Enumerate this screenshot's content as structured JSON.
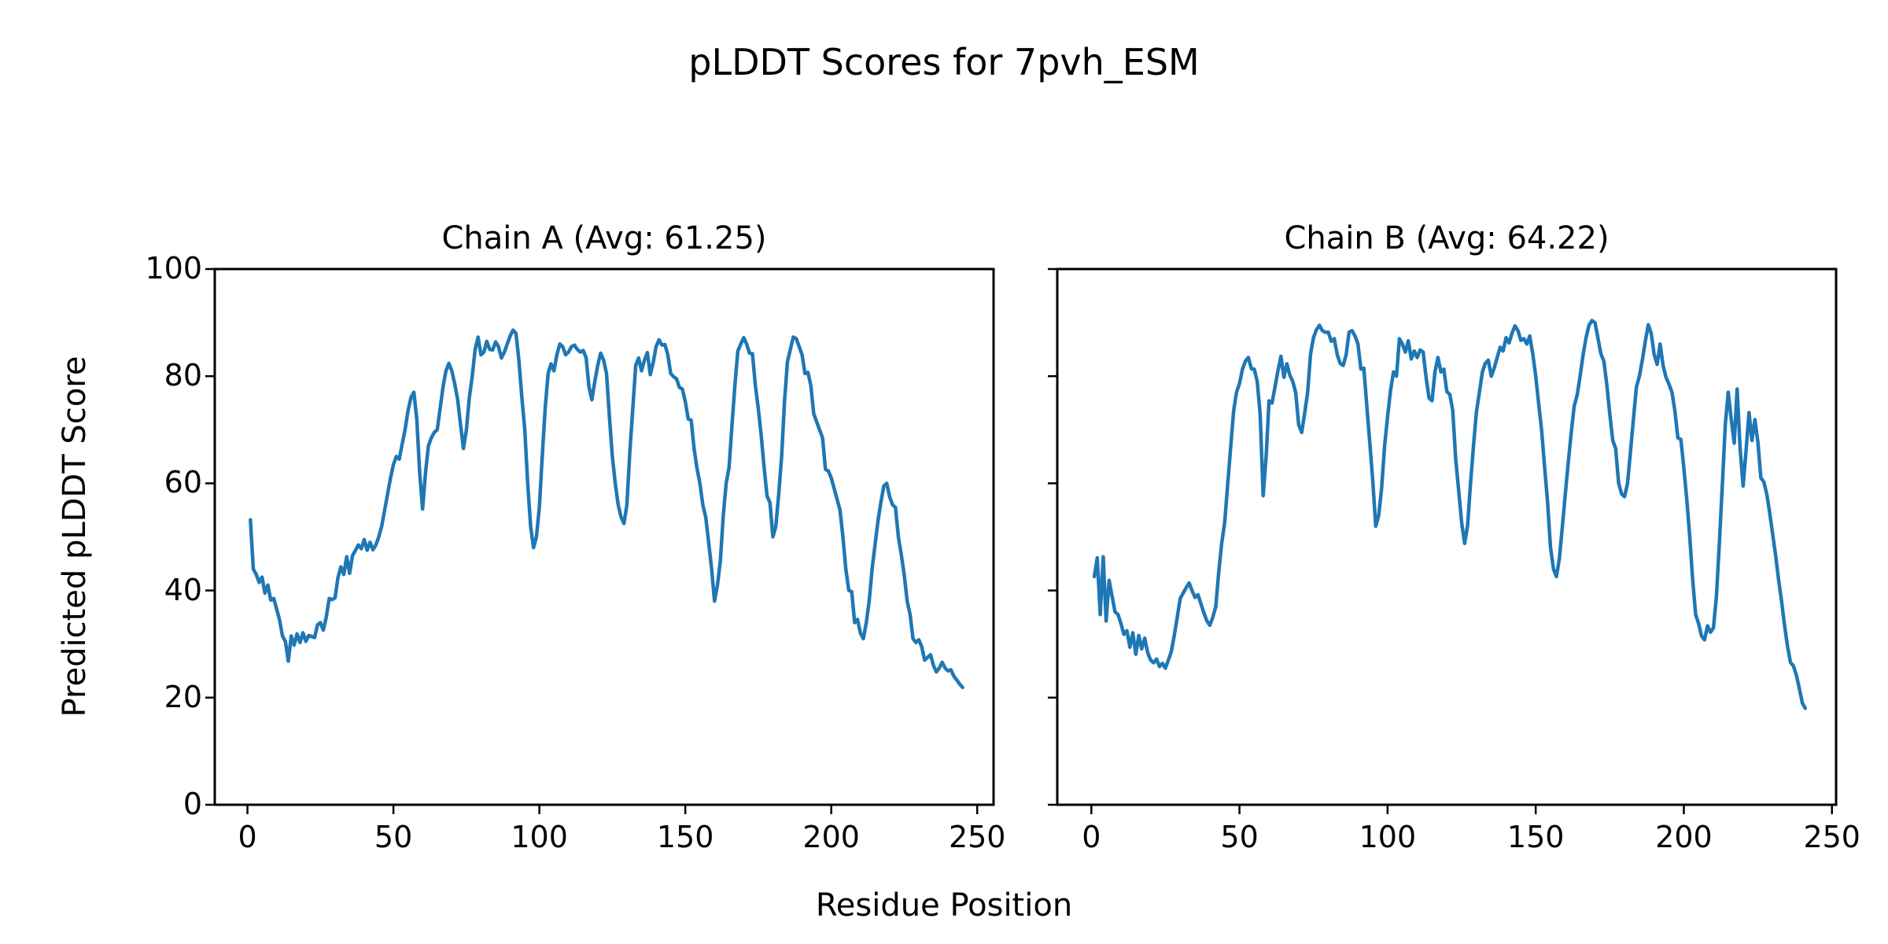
{
  "figure": {
    "title": "pLDDT Scores for 7pvh_ESM",
    "xlabel": "Residue Position",
    "ylabel": "Predicted pLDDT Score"
  },
  "chart_data": {
    "type": "line",
    "title": "pLDDT Scores for 7pvh_ESM",
    "xlabel": "Residue Position",
    "ylabel": "Predicted pLDDT Score",
    "line_color": "#1f77b4",
    "axis_color": "#000000",
    "grid": false,
    "legend": null,
    "ylim": [
      0,
      100
    ],
    "y_ticks": [
      0,
      20,
      40,
      60,
      80,
      100
    ],
    "x_ticks": [
      0,
      50,
      100,
      150,
      200,
      250
    ],
    "subplots": [
      {
        "id": "chain-a",
        "title": "Chain A (Avg: 61.25)",
        "chain": "A",
        "avg": 61.25,
        "xlim": [
          -11.2,
          255.6
        ],
        "x_range": [
          1,
          245
        ],
        "y": [
          53.2,
          44.0,
          43.0,
          41.5,
          42.5,
          39.5,
          41.0,
          38.2,
          38.5,
          36.5,
          34.5,
          31.5,
          30.5,
          26.8,
          31.5,
          29.8,
          31.9,
          30.3,
          32.1,
          30.5,
          31.6,
          31.4,
          31.2,
          33.6,
          34.0,
          32.6,
          35.0,
          38.5,
          38.3,
          38.6,
          42.4,
          44.4,
          43.0,
          46.3,
          43.2,
          46.5,
          47.5,
          48.5,
          47.8,
          49.5,
          47.5,
          49.0,
          47.6,
          48.5,
          50.0,
          52.0,
          55.0,
          58.0,
          61.0,
          63.5,
          65.0,
          64.5,
          67.3,
          70.0,
          73.5,
          76.0,
          77.0,
          72.0,
          62.0,
          55.2,
          62.0,
          67.0,
          68.5,
          69.5,
          70.0,
          74.0,
          78.0,
          81.0,
          82.4,
          81.0,
          78.6,
          75.7,
          71.0,
          66.5,
          70.0,
          76.0,
          80.0,
          85.0,
          87.3,
          84.0,
          84.5,
          86.5,
          85.0,
          84.9,
          86.4,
          85.5,
          83.4,
          84.5,
          86.0,
          87.5,
          88.6,
          88.0,
          83.0,
          76.0,
          70.0,
          60.0,
          52.0,
          48.0,
          50.0,
          55.5,
          65.0,
          74.0,
          80.5,
          82.3,
          81.0,
          84.0,
          86.0,
          85.5,
          84.0,
          84.5,
          85.5,
          85.8,
          85.0,
          84.5,
          84.8,
          83.5,
          78.0,
          75.6,
          79.0,
          82.0,
          84.3,
          83.0,
          80.5,
          72.4,
          65.0,
          60.0,
          56.0,
          53.7,
          52.5,
          56.0,
          66.0,
          74.0,
          82.0,
          83.4,
          81.0,
          83.0,
          84.4,
          80.3,
          82.5,
          85.5,
          86.8,
          85.8,
          85.9,
          84.0,
          80.5,
          79.9,
          79.5,
          77.9,
          77.6,
          75.2,
          72.0,
          71.8,
          66.5,
          62.8,
          60.0,
          56.0,
          53.7,
          49.0,
          44.0,
          38.0,
          41.0,
          45.5,
          54.0,
          60.0,
          63.0,
          70.9,
          78.3,
          84.7,
          86.0,
          87.2,
          86.0,
          84.3,
          84.2,
          78.3,
          74.0,
          69.0,
          63.0,
          57.6,
          56.4,
          50.0,
          52.0,
          58.0,
          65.0,
          75.4,
          82.7,
          85.0,
          87.3,
          87.0,
          85.5,
          84.0,
          80.5,
          80.7,
          78.3,
          73.0,
          71.5,
          70.0,
          68.5,
          62.6,
          62.3,
          61.0,
          59.0,
          57.0,
          55.0,
          50.0,
          44.0,
          40.0,
          39.8,
          34.0,
          34.6,
          32.0,
          31.0,
          34.0,
          38.0,
          44.0,
          48.5,
          53.0,
          56.5,
          59.5,
          60.0,
          57.5,
          56.0,
          55.5,
          50.0,
          46.7,
          42.8,
          38.0,
          35.5,
          31.0,
          30.3,
          30.8,
          29.5,
          27.0,
          27.5,
          28.0,
          26.0,
          24.8,
          25.5,
          26.6,
          25.5,
          25.0,
          25.2,
          24.0,
          23.3,
          22.5,
          21.9
        ]
      },
      {
        "id": "chain-b",
        "title": "Chain B (Avg: 64.22)",
        "chain": "B",
        "avg": 64.22,
        "xlim": [
          -11.5,
          251.4
        ],
        "x_range": [
          1,
          241
        ],
        "y": [
          42.6,
          46.1,
          35.5,
          46.3,
          34.3,
          41.9,
          38.9,
          36.0,
          35.5,
          33.8,
          31.8,
          32.5,
          29.4,
          32.1,
          28.1,
          31.6,
          29.1,
          31.1,
          28.4,
          27.0,
          26.5,
          27.2,
          25.8,
          26.4,
          25.5,
          27.0,
          28.6,
          31.6,
          35.0,
          38.5,
          39.5,
          40.5,
          41.4,
          40.0,
          38.7,
          39.2,
          37.5,
          35.8,
          34.3,
          33.5,
          35.0,
          37.0,
          43.4,
          48.8,
          52.7,
          59.6,
          66.5,
          73.4,
          77.0,
          78.6,
          81.3,
          82.8,
          83.5,
          81.4,
          81.3,
          79.0,
          72.9,
          57.7,
          65.0,
          75.4,
          75.0,
          78.0,
          81.0,
          83.7,
          79.8,
          82.3,
          80.2,
          79.0,
          76.9,
          70.9,
          69.5,
          73.0,
          76.9,
          84.2,
          87.2,
          88.7,
          89.5,
          88.5,
          88.2,
          88.2,
          86.5,
          87.0,
          84.0,
          82.4,
          82.0,
          84.0,
          88.2,
          88.5,
          87.5,
          86.0,
          81.3,
          81.5,
          74.4,
          67.5,
          60.6,
          52.0,
          54.0,
          59.1,
          67.0,
          72.5,
          77.3,
          80.8,
          80.0,
          87.0,
          86.0,
          84.5,
          86.6,
          83.2,
          84.7,
          83.5,
          84.9,
          84.5,
          79.8,
          75.9,
          75.4,
          80.8,
          83.5,
          80.8,
          81.3,
          77.1,
          76.6,
          73.6,
          64.5,
          58.6,
          52.7,
          48.8,
          52.0,
          60.0,
          67.0,
          73.3,
          77.0,
          80.8,
          82.4,
          83.0,
          80.0,
          81.5,
          83.5,
          85.4,
          84.7,
          87.2,
          86.2,
          88.0,
          89.4,
          88.5,
          86.7,
          87.0,
          86.0,
          87.5,
          84.2,
          80.0,
          74.9,
          69.9,
          63.0,
          56.6,
          48.0,
          44.0,
          42.6,
          46.0,
          52.0,
          58.0,
          64.0,
          69.4,
          74.4,
          76.5,
          80.0,
          84.0,
          87.2,
          89.5,
          90.4,
          90.0,
          87.2,
          84.2,
          82.8,
          78.5,
          73.0,
          68.0,
          66.5,
          60.0,
          58.0,
          57.5,
          60.0,
          66.0,
          72.0,
          78.0,
          80.0,
          83.0,
          86.5,
          89.6,
          88.0,
          84.0,
          82.2,
          86.0,
          82.0,
          79.8,
          78.5,
          77.0,
          73.5,
          68.5,
          68.2,
          63.0,
          57.0,
          50.0,
          42.0,
          35.5,
          33.8,
          31.5,
          30.8,
          33.4,
          32.2,
          33.0,
          38.9,
          48.8,
          59.6,
          71.0,
          77.0,
          72.0,
          67.5,
          77.6,
          66.5,
          59.5,
          66.0,
          73.2,
          68.0,
          71.9,
          67.7,
          61.0,
          60.3,
          58.0,
          54.5,
          50.5,
          46.5,
          42.0,
          38.0,
          33.5,
          29.6,
          26.6,
          25.9,
          24.2,
          21.7,
          19.0,
          18.0
        ]
      }
    ]
  }
}
